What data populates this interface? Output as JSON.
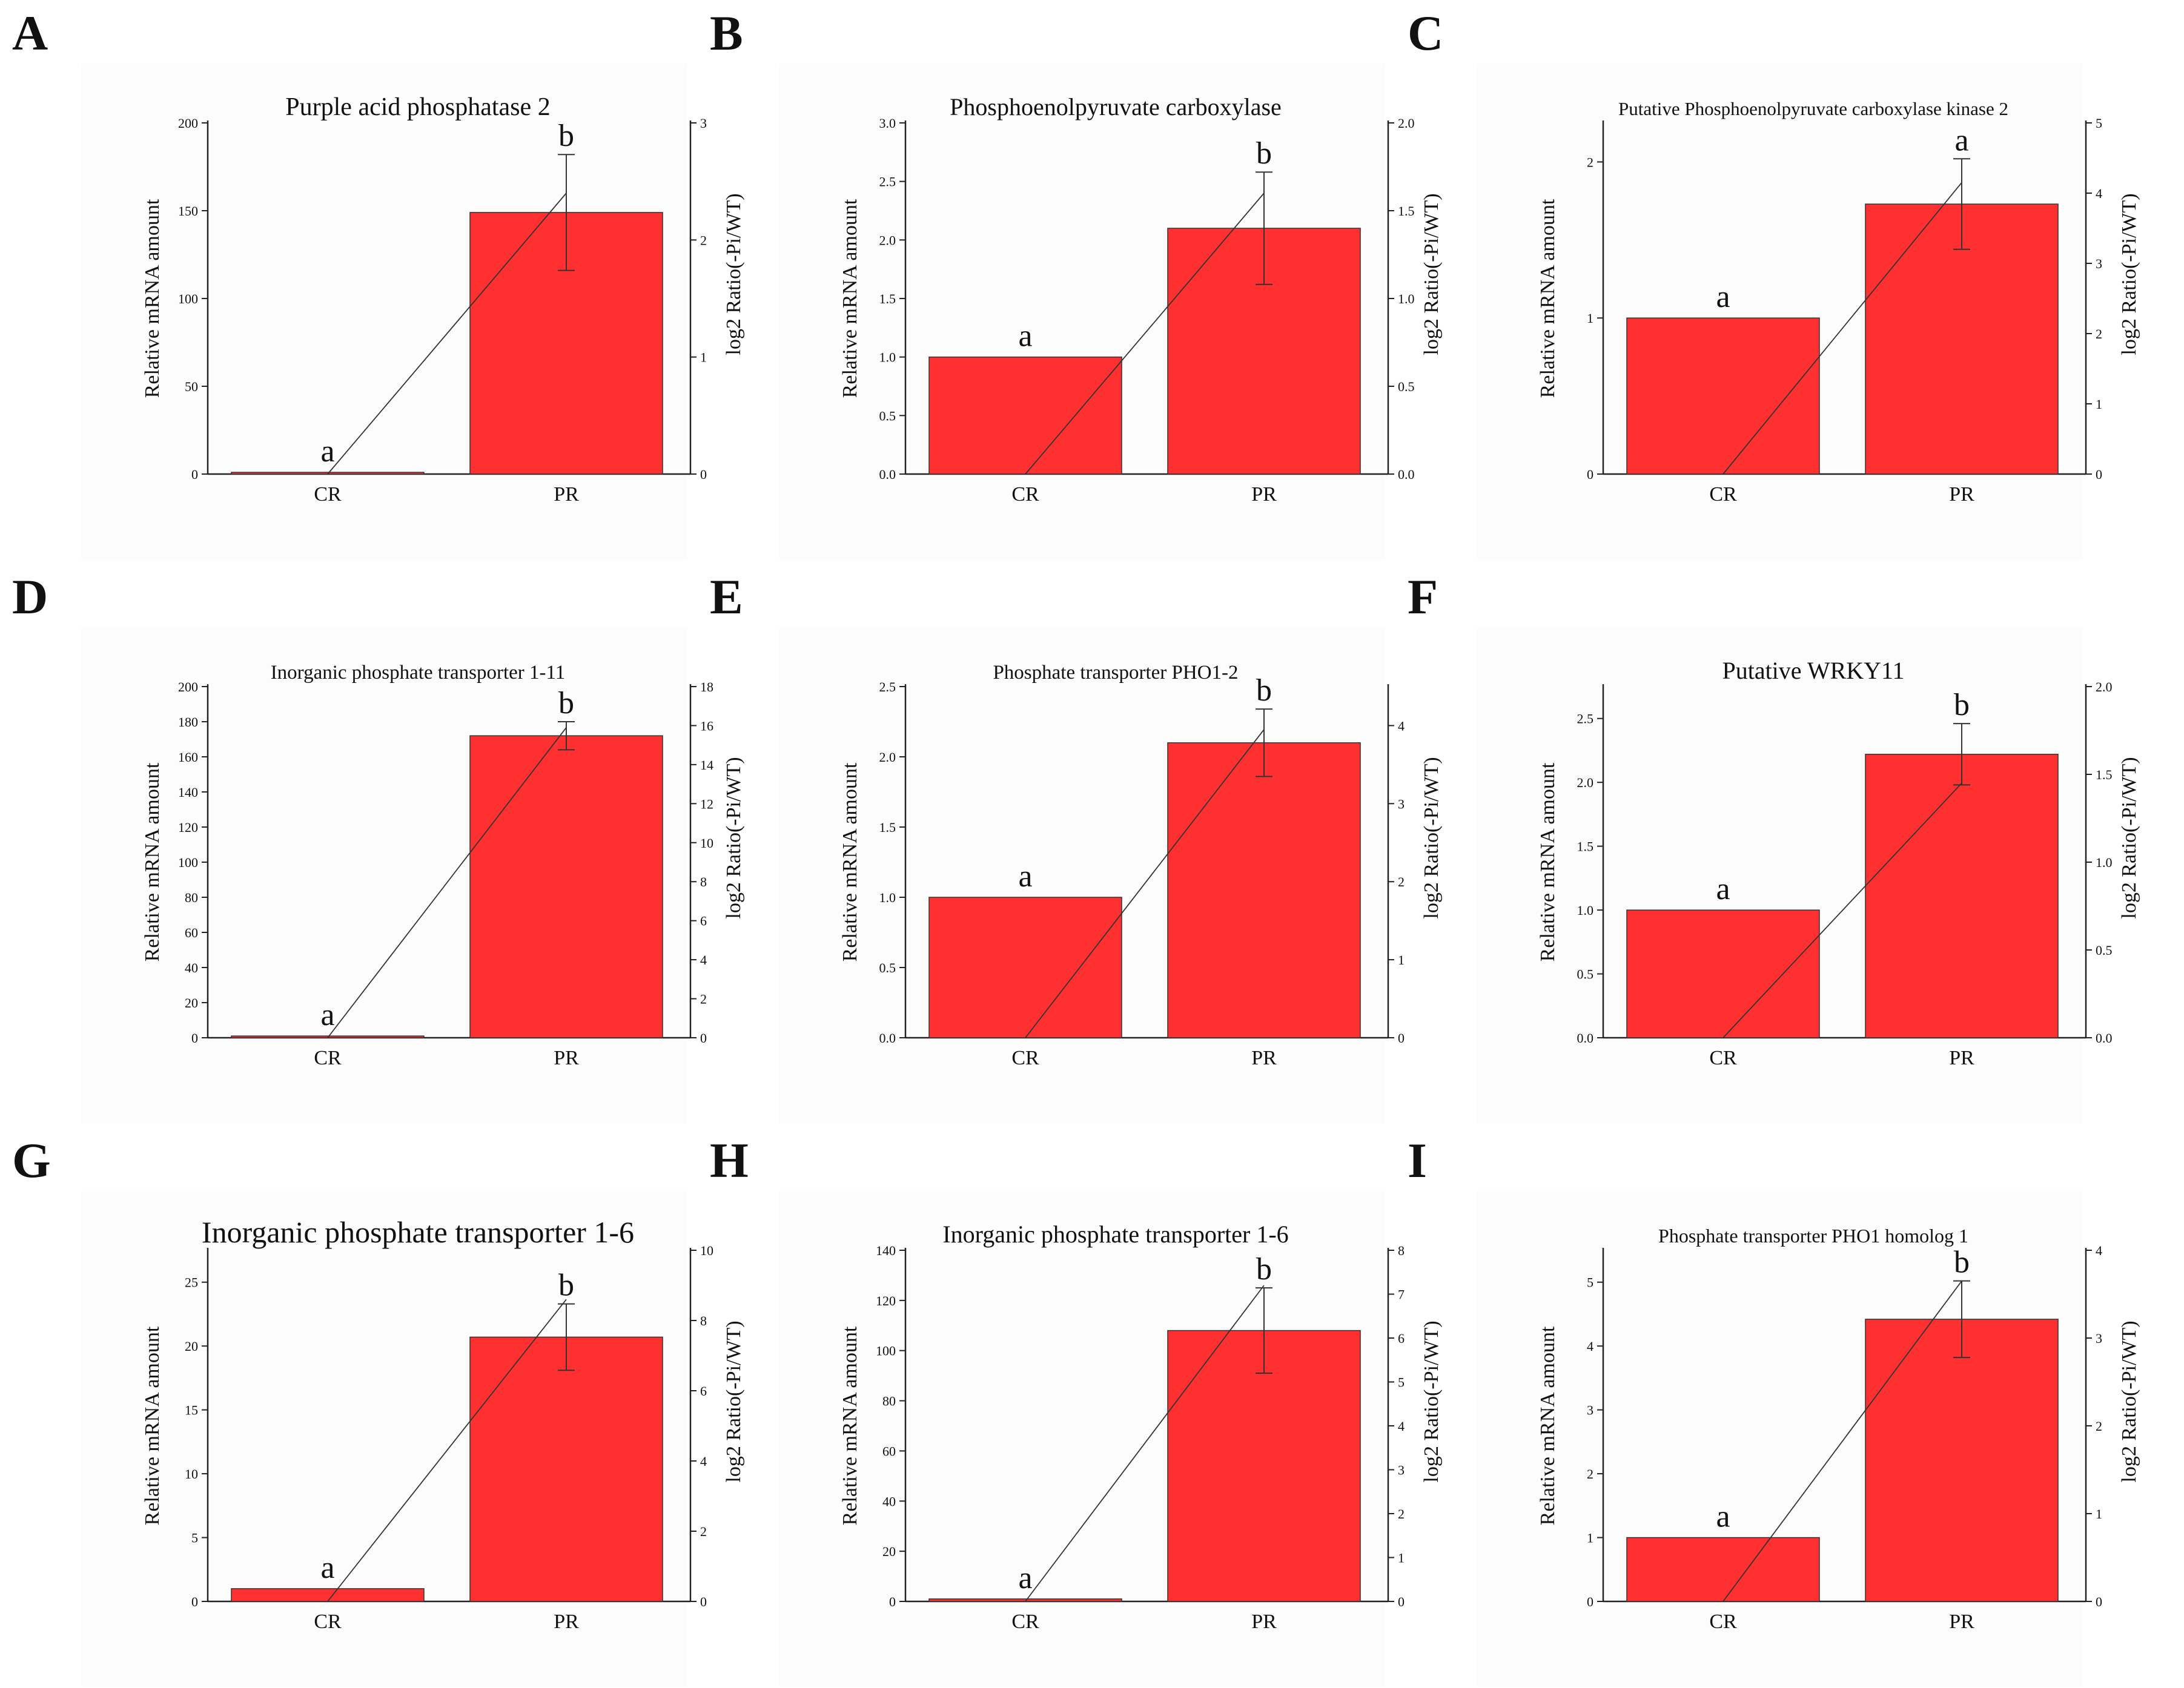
{
  "figure": {
    "bar_color": "#ff3030",
    "line_color": "#333333"
  },
  "chart_data": [
    {
      "panel": "A",
      "type": "bar",
      "title": "Purple acid phosphatase 2",
      "categories": [
        "CR",
        "PR"
      ],
      "ylabel": "Relative mRNA amount",
      "y2label": "log2 Ratio(-Pi/WT)",
      "ylim": [
        0,
        200
      ],
      "yticks": [
        "0",
        "50",
        "100",
        "150",
        "200"
      ],
      "y2lim": [
        0,
        3
      ],
      "y2ticks": [
        "0",
        "1",
        "2",
        "3"
      ],
      "values": [
        1,
        149
      ],
      "errors": [
        0,
        33
      ],
      "sig_labels": [
        "a",
        "b"
      ],
      "line_values": [
        0,
        2.4
      ]
    },
    {
      "panel": "B",
      "type": "bar",
      "title": "Phosphoenolpyruvate carboxylase",
      "categories": [
        "CR",
        "PR"
      ],
      "ylabel": "Relative mRNA amount",
      "y2label": "log2 Ratio(-Pi/WT)",
      "ylim": [
        0,
        3
      ],
      "yticks": [
        "0.0",
        "0.5",
        "1.0",
        "1.5",
        "2.0",
        "2.5",
        "3.0"
      ],
      "y2lim": [
        0,
        2
      ],
      "y2ticks": [
        "0.0",
        "0.5",
        "1.0",
        "1.5",
        "2.0"
      ],
      "values": [
        1.0,
        2.1
      ],
      "errors": [
        0,
        0.48
      ],
      "sig_labels": [
        "a",
        "b"
      ],
      "line_values": [
        0,
        1.6
      ]
    },
    {
      "panel": "C",
      "type": "bar",
      "title": "Putative Phosphoenolpyruvate carboxylase kinase 2",
      "categories": [
        "CR",
        "PR"
      ],
      "ylabel": "Relative mRNA amount",
      "y2label": "log2 Ratio(-Pi/WT)",
      "ylim": [
        0,
        2.25
      ],
      "yticks": [
        "0",
        "1",
        "2"
      ],
      "y2lim": [
        0,
        5
      ],
      "y2ticks": [
        "0",
        "1",
        "2",
        "3",
        "4",
        "5"
      ],
      "values": [
        1.0,
        1.73
      ],
      "errors": [
        0,
        0.29
      ],
      "sig_labels": [
        "a",
        "a"
      ],
      "line_values": [
        0,
        4.15
      ]
    },
    {
      "panel": "D",
      "type": "bar",
      "title": "Inorganic phosphate transporter 1-11",
      "categories": [
        "CR",
        "PR"
      ],
      "ylabel": "Relative mRNA amount",
      "y2label": "log2 Ratio(-Pi/WT)",
      "ylim": [
        0,
        200
      ],
      "yticks": [
        "0",
        "20",
        "40",
        "60",
        "80",
        "100",
        "120",
        "140",
        "160",
        "180",
        "200"
      ],
      "y2lim": [
        0,
        18
      ],
      "y2ticks": [
        "0",
        "2",
        "4",
        "6",
        "8",
        "10",
        "12",
        "14",
        "16",
        "18"
      ],
      "values": [
        1,
        172
      ],
      "errors": [
        0,
        8
      ],
      "sig_labels": [
        "a",
        "b"
      ],
      "line_values": [
        0,
        15.9
      ]
    },
    {
      "panel": "E",
      "type": "bar",
      "title": "Phosphate transporter PHO1-2",
      "categories": [
        "CR",
        "PR"
      ],
      "ylabel": "Relative mRNA amount",
      "y2label": "log2 Ratio(-Pi/WT)",
      "ylim": [
        0,
        2.5
      ],
      "yticks": [
        "0.0",
        "0.5",
        "1.0",
        "1.5",
        "2.0",
        "2.5"
      ],
      "y2lim": [
        0,
        4.5
      ],
      "y2ticks": [
        "0",
        "1",
        "2",
        "3",
        "4"
      ],
      "values": [
        1.0,
        2.1
      ],
      "errors": [
        0,
        0.24
      ],
      "sig_labels": [
        "a",
        "b"
      ],
      "line_values": [
        0,
        3.95
      ]
    },
    {
      "panel": "F",
      "type": "bar",
      "title": "Putative WRKY11",
      "categories": [
        "CR",
        "PR"
      ],
      "ylabel": "Relative mRNA amount",
      "y2label": "log2 Ratio(-Pi/WT)",
      "ylim": [
        0,
        2.75
      ],
      "yticks": [
        "0.0",
        "0.5",
        "1.0",
        "1.5",
        "2.0",
        "2.5"
      ],
      "y2lim": [
        0,
        2
      ],
      "y2ticks": [
        "0.0",
        "0.5",
        "1.0",
        "1.5",
        "2.0"
      ],
      "values": [
        1.0,
        2.22
      ],
      "errors": [
        0,
        0.24
      ],
      "sig_labels": [
        "a",
        "b"
      ],
      "line_values": [
        0,
        1.45
      ]
    },
    {
      "panel": "G",
      "type": "bar",
      "title": "Inorganic phosphate transporter 1-6",
      "categories": [
        "CR",
        "PR"
      ],
      "ylabel": "Relative mRNA amount",
      "y2label": "log2 Ratio(-Pi/WT)",
      "ylim": [
        0,
        27.5
      ],
      "yticks": [
        "0",
        "5",
        "10",
        "15",
        "20",
        "25"
      ],
      "y2lim": [
        0,
        10
      ],
      "y2ticks": [
        "0",
        "2",
        "4",
        "6",
        "8",
        "10"
      ],
      "values": [
        1,
        20.7
      ],
      "errors": [
        0,
        2.6
      ],
      "sig_labels": [
        "a",
        "b"
      ],
      "line_values": [
        0,
        8.6
      ]
    },
    {
      "panel": "H",
      "type": "bar",
      "title": "Inorganic phosphate transporter 1-6",
      "categories": [
        "CR",
        "PR"
      ],
      "ylabel": "Relative mRNA amount",
      "y2label": "log2 Ratio(-Pi/WT)",
      "ylim": [
        0,
        140
      ],
      "yticks": [
        "0",
        "20",
        "40",
        "60",
        "80",
        "100",
        "120",
        "140"
      ],
      "y2lim": [
        0,
        8
      ],
      "y2ticks": [
        "0",
        "1",
        "2",
        "3",
        "4",
        "5",
        "6",
        "7",
        "8"
      ],
      "values": [
        1,
        108
      ],
      "errors": [
        0,
        17
      ],
      "sig_labels": [
        "a",
        "b"
      ],
      "line_values": [
        0,
        7.2
      ]
    },
    {
      "panel": "I",
      "type": "bar",
      "title": "Phosphate transporter PHO1 homolog 1",
      "categories": [
        "CR",
        "PR"
      ],
      "ylabel": "Relative mRNA amount",
      "y2label": "log2 Ratio(-Pi/WT)",
      "ylim": [
        0,
        5.5
      ],
      "yticks": [
        "0",
        "1",
        "2",
        "3",
        "4",
        "5"
      ],
      "y2lim": [
        0,
        4
      ],
      "y2ticks": [
        "0",
        "1",
        "2",
        "3",
        "4"
      ],
      "values": [
        1.0,
        4.42
      ],
      "errors": [
        0,
        0.6
      ],
      "sig_labels": [
        "a",
        "b"
      ],
      "line_values": [
        0,
        3.65
      ]
    }
  ]
}
